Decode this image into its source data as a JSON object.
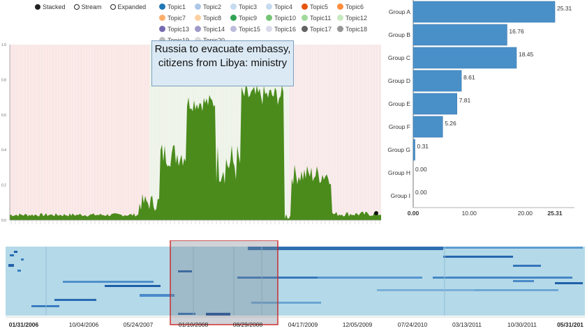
{
  "view_modes": {
    "items": [
      {
        "label": "Stacked",
        "selected": true
      },
      {
        "label": "Stream",
        "selected": false
      },
      {
        "label": "Expanded",
        "selected": false
      }
    ]
  },
  "topics": [
    {
      "label": "Topic1",
      "color": "#1f77b4"
    },
    {
      "label": "Topic2",
      "color": "#aec7e8"
    },
    {
      "label": "Topic3",
      "color": "#c6dbef"
    },
    {
      "label": "Topic4",
      "color": "#c6dbef"
    },
    {
      "label": "Topic5",
      "color": "#e6550d"
    },
    {
      "label": "Topic6",
      "color": "#fd8d3c"
    },
    {
      "label": "Topic7",
      "color": "#fdae6b"
    },
    {
      "label": "Topic8",
      "color": "#fdd0a2"
    },
    {
      "label": "Topic9",
      "color": "#31a354"
    },
    {
      "label": "Topic10",
      "color": "#74c476"
    },
    {
      "label": "Topic11",
      "color": "#a1d99b"
    },
    {
      "label": "Topic12",
      "color": "#c7e9c0"
    },
    {
      "label": "Topic13",
      "color": "#756bb1"
    },
    {
      "label": "Topic14",
      "color": "#9e9ac8"
    },
    {
      "label": "Topic15",
      "color": "#bcbddc"
    },
    {
      "label": "Topic16",
      "color": "#dadaeb"
    },
    {
      "label": "Topic17",
      "color": "#636363"
    },
    {
      "label": "Topic18",
      "color": "#969696"
    },
    {
      "label": "Topic19",
      "color": "#bdbdbd"
    },
    {
      "label": "Topic20",
      "color": "#d9d9d9"
    }
  ],
  "stream": {
    "y_ticks": [
      "0.0",
      "0.2",
      "0.4",
      "0.6",
      "0.8",
      "1.0"
    ],
    "highlight_color": "#4a8b1c"
  },
  "tooltip": {
    "text": "Russia to evacuate embassy, citizens from Libya: ministry"
  },
  "chart_data": [
    {
      "type": "bar",
      "orientation": "horizontal",
      "categories": [
        "Group A",
        "Group B",
        "Group C",
        "Group D",
        "Group E",
        "Group F",
        "Group G",
        "Group H",
        "Group I"
      ],
      "values": [
        25.31,
        16.76,
        18.45,
        8.61,
        7.81,
        5.26,
        0.31,
        0.0,
        0.0
      ],
      "value_labels": [
        "25.31",
        "16.76",
        "18.45",
        "8.61",
        "7.81",
        "5.26",
        "0.31",
        "0.00",
        "0.00"
      ],
      "x_ticks": [
        "0.00",
        "10.00",
        "20.00",
        "25.31"
      ],
      "xlim": [
        0,
        25.31
      ],
      "color": "#4a90c8"
    }
  ],
  "timeline": {
    "dates": [
      "01/31/2006",
      "10/04/2006",
      "05/24/2007",
      "01/10/2008",
      "08/29/2008",
      "04/17/2009",
      "12/05/2009",
      "07/24/2010",
      "03/13/2011",
      "10/30/2011",
      "05/31/201"
    ],
    "selection_color": "#cc2222"
  }
}
